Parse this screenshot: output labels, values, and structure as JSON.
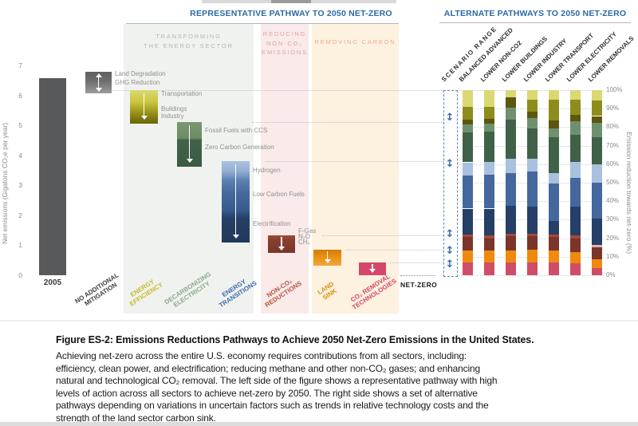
{
  "figure": {
    "left_header": "REPRESENTATIVE PATHWAY TO 2050 NET-ZERO",
    "right_header": "ALTERNATE PATHWAYS TO 2050 NET-ZERO",
    "header_color": "#2b6aa3",
    "groups": [
      {
        "label": "TRANSFORMING\nTHE ENERGY SECTOR",
        "bg": "#f0f2ef",
        "fg": "#b4b7b3"
      },
      {
        "label": "REDUCING\nNON-CO₂\nEMISSIONS",
        "bg": "#faeaea",
        "fg": "#e0a39e"
      },
      {
        "label": "REMOVING CARBON",
        "bg": "#fdf1e0",
        "fg": "#e5b193"
      }
    ],
    "net_zero_label": "NET-ZERO",
    "range_label": "SCENARIO RANGE"
  },
  "chart_data": [
    {
      "type": "bar",
      "subtype": "waterfall",
      "title": "REPRESENTATIVE PATHWAY TO 2050 NET-ZERO",
      "ylabel": "Net emissions (Gigatons CO₂e per year)",
      "ylim": [
        0,
        7
      ],
      "yticks": [
        0,
        1,
        2,
        3,
        4,
        5,
        6,
        7
      ],
      "net_zero_value": 0,
      "bars": [
        {
          "id": "2005",
          "label": "2005",
          "from": 0,
          "to": 6.57,
          "label_color": "#3c3c3c",
          "arrow": null
        },
        {
          "id": "no-additional-mitigation",
          "label": "NO ADDITIONAL\nMITIGATION",
          "from": 6.06,
          "to": 6.78,
          "label_color": "#3f3f3f",
          "arrow": "updown",
          "annotations": [
            {
              "text": "Land Degradation",
              "v": 6.72
            },
            {
              "text": "GHG Reduction",
              "v": 6.43
            }
          ]
        },
        {
          "id": "energy-efficiency",
          "label": "ENERGY\nEFFICIENCY",
          "from": 5.06,
          "to": 6.17,
          "label_color": "#c5bb2b",
          "arrow": "down",
          "annotations": [
            {
              "text": "Transportation",
              "v": 6.05
            },
            {
              "text": "Buildings",
              "v": 5.54
            },
            {
              "text": "Industry",
              "v": 5.3
            }
          ]
        },
        {
          "id": "decarbonizing-electricity",
          "label": "DECARBONIZING\nELECTRICITY",
          "from": 3.63,
          "to": 5.12,
          "label_color": "#8aa98c",
          "arrow": "down",
          "annotations": [
            {
              "text": "Fossil Fuels with CCS",
              "v": 4.83
            },
            {
              "text": "Zero Carbon Generation",
              "v": 4.26
            }
          ]
        },
        {
          "id": "energy-transitions",
          "label": "ENERGY\nTRANSITIONS",
          "from": 1.1,
          "to": 3.81,
          "label_color": "#3a6cab",
          "arrow": "down",
          "annotations": [
            {
              "text": "Hydrogen",
              "v": 3.49
            },
            {
              "text": "Low Carbon Fuels",
              "v": 2.71
            },
            {
              "text": "Electrification",
              "v": 1.71
            }
          ]
        },
        {
          "id": "non-co2-reductions",
          "label": "NON-CO₂\nREDUCTIONS",
          "from": 0.75,
          "to": 1.33,
          "label_color": "#b5543f",
          "arrow": "down",
          "annotations": [
            {
              "text": "F-Gas",
              "v": 1.47
            },
            {
              "text": "N₂O",
              "v": 1.29
            },
            {
              "text": "CH₄",
              "v": 1.11
            }
          ]
        },
        {
          "id": "land-sink",
          "label": "LAND\nSINK",
          "from": 0.31,
          "to": 0.86,
          "label_color": "#d0930f",
          "arrow": "down",
          "annotations": []
        },
        {
          "id": "co2-removal",
          "label": "CO₂ REMOVAL\nTECHNOLOGIES",
          "from": 0,
          "to": 0.42,
          "label_color": "#d6466b",
          "arrow": "down",
          "annotations": []
        }
      ]
    },
    {
      "type": "bar",
      "subtype": "stacked-percent",
      "title": "ALTERNATE PATHWAYS TO 2050 NET-ZERO",
      "ylabel": "Emission reduction towards net-zero (%)",
      "ylim": [
        0,
        100
      ],
      "yticks": [
        "0%",
        "10%",
        "20%",
        "30%",
        "40%",
        "50%",
        "60%",
        "70%",
        "80%",
        "90%",
        "100%"
      ],
      "categories": [
        "BALANCED ADVANCED",
        "LOWER NON-CO2",
        "LOWER BUILDINGS",
        "LOWER INDUSTRY",
        "LOWER TRANSPORT",
        "LOWER ELECTRICITY",
        "LOWER REMOVALS"
      ],
      "range_arrows_pct": [
        85,
        60,
        22,
        13,
        5.5
      ],
      "stacks": [
        [
          [
            "pink",
            7
          ],
          [
            "orange",
            6.5
          ],
          [
            "maroon",
            7
          ],
          [
            "rust",
            1.5
          ],
          [
            "navy",
            14
          ],
          [
            "blue",
            18
          ],
          [
            "paleblue",
            7
          ],
          [
            "dkgreen",
            16
          ],
          [
            "sage",
            4.5
          ],
          [
            "dkolive",
            2.5
          ],
          [
            "olive",
            7
          ],
          [
            "ltyellow",
            9
          ]
        ],
        [
          [
            "pink",
            7
          ],
          [
            "orange",
            6.5
          ],
          [
            "maroon",
            6.5
          ],
          [
            "rust",
            1.5
          ],
          [
            "navy",
            14.5
          ],
          [
            "blue",
            18.5
          ],
          [
            "paleblue",
            6.5
          ],
          [
            "dkgreen",
            16.5
          ],
          [
            "sage",
            4.5
          ],
          [
            "dkolive",
            2.5
          ],
          [
            "olive",
            6.5
          ],
          [
            "ltyellow",
            9
          ]
        ],
        [
          [
            "pink",
            7
          ],
          [
            "orange",
            6.5
          ],
          [
            "maroon",
            7.5
          ],
          [
            "rust",
            1.5
          ],
          [
            "navy",
            15
          ],
          [
            "blue",
            17.5
          ],
          [
            "paleblue",
            8
          ],
          [
            "dkgreen",
            21
          ],
          [
            "sage",
            6.5
          ],
          [
            "dkolive",
            5.5
          ],
          [
            "ltyellow",
            4
          ]
        ],
        [
          [
            "pink",
            7
          ],
          [
            "orange",
            7
          ],
          [
            "maroon",
            7
          ],
          [
            "rust",
            1.5
          ],
          [
            "navy",
            14.5
          ],
          [
            "blue",
            19
          ],
          [
            "paleblue",
            7
          ],
          [
            "dkgreen",
            16.5
          ],
          [
            "sage",
            5.5
          ],
          [
            "dkolive",
            3.5
          ],
          [
            "olive",
            6.5
          ],
          [
            "ltyellow",
            5
          ]
        ],
        [
          [
            "pink",
            7
          ],
          [
            "orange",
            6.5
          ],
          [
            "maroon",
            7
          ],
          [
            "rust",
            1.5
          ],
          [
            "navy",
            7.5
          ],
          [
            "blue",
            20
          ],
          [
            "paleblue",
            5.5
          ],
          [
            "dkgreen",
            19.5
          ],
          [
            "sage",
            5
          ],
          [
            "dkolive",
            4
          ],
          [
            "olive",
            11.5
          ],
          [
            "ltyellow",
            5
          ]
        ],
        [
          [
            "pink",
            6.5
          ],
          [
            "orange",
            6
          ],
          [
            "maroon",
            7.5
          ],
          [
            "rust",
            1.5
          ],
          [
            "navy",
            15.5
          ],
          [
            "blue",
            15.5
          ],
          [
            "paleblue",
            8.5
          ],
          [
            "dkgreen",
            15
          ],
          [
            "sage",
            7
          ],
          [
            "dkolive",
            3.5
          ],
          [
            "olive",
            8.5
          ],
          [
            "ltyellow",
            5
          ]
        ],
        [
          [
            "pink",
            4
          ],
          [
            "orange",
            4.5
          ],
          [
            "maroon",
            6.5
          ],
          [
            "lightpink",
            1.5
          ],
          [
            "navy",
            14
          ],
          [
            "blue",
            19.5
          ],
          [
            "paleblue",
            10
          ],
          [
            "dkgreen",
            14.5
          ],
          [
            "sage",
            8
          ],
          [
            "dkolive",
            3.5
          ],
          [
            "olive",
            8.5
          ],
          [
            "ltyellow",
            5.5
          ]
        ]
      ]
    }
  ],
  "colors": {
    "palette": {
      "ltyellow": "#d9d873",
      "olive": "#8e8d1c",
      "dkolive": "#5c560f",
      "sage": "#6f906e",
      "dkgreen": "#3f6147",
      "paleblue": "#a9c1de",
      "blue": "#44689d",
      "navy": "#253f66",
      "rust": "#a34a38",
      "maroon": "#7b352a",
      "lightpink": "#e3b0a8",
      "orange": "#ee8a0e",
      "pink": "#d04d67"
    },
    "waterfall": {
      "2005": [
        "#58595b"
      ],
      "no-additional-mitigation": [
        "#606060",
        "#6f6f6f 45%",
        "#9c9c9c"
      ],
      "energy-efficiency": [
        "#d9d873",
        "#ccc63e 35%",
        "#8d8613 75%",
        "#6a6405"
      ],
      "decarbonizing-electricity": [
        "#7a9770",
        "#6d8c66 36%",
        "#426349 40%",
        "#3a5a43"
      ],
      "energy-transitions": [
        "#aac2df",
        "#93b0d3 12%",
        "#5c80b0 24%",
        "#44689d 40%",
        "#395b8f 60%",
        "#253f66 70%",
        "#22395c"
      ],
      "non-co2-reductions": [
        "#a34a38",
        "#87402f 25%",
        "#7b352a"
      ],
      "land-sink": [
        "#d37c05",
        "#e98f12 45%",
        "#f3a53e"
      ],
      "co2-removal": [
        "#d6466b",
        "#d6466b"
      ]
    },
    "accent_blue": "#2b6aa3",
    "range_box_blue": "#5b85b8",
    "axis_text": "#8a8a8a"
  },
  "caption": {
    "title": "Figure ES-2: Emissions Reductions Pathways to Achieve 2050 Net-Zero Emissions in the United States.",
    "lines": [
      "Achieving net-zero across the entire U.S. economy requires contributions from all sectors, including:",
      "efficiency, clean power, and electrification; reducing methane and other non-CO₂ gases; and enhancing",
      "natural and technological CO₂ removal. The left side of the figure shows a representative pathway with high",
      "levels of action across all sectors to achieve net-zero by 2050. The right side shows a set of alternative",
      "pathways depending on variations in uncertain factors such as trends in relative technology costs and the",
      "strength of the land sector carbon sink."
    ]
  }
}
